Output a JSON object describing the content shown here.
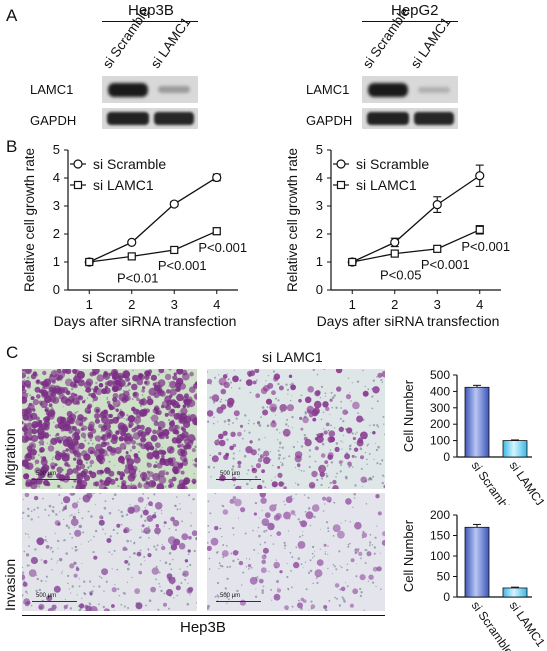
{
  "panels": {
    "a": "A",
    "b": "B",
    "c": "C"
  },
  "western_blot": [
    {
      "cell_line": "Hep3B",
      "lanes": [
        "si Scramble",
        "si LAMC1"
      ],
      "rows": [
        "LAMC1",
        "GAPDH"
      ]
    },
    {
      "cell_line": "HepG2",
      "lanes": [
        "si Scramble",
        "si LAMC1"
      ],
      "rows": [
        "LAMC1",
        "GAPDH"
      ]
    }
  ],
  "chart_data": [
    {
      "type": "line",
      "x": [
        1,
        2,
        3,
        4
      ],
      "xlabel": "Days after siRNA transfection",
      "ylabel": "Relative cell growth rate",
      "xlim": [
        0.5,
        4.5
      ],
      "ylim": [
        0,
        5
      ],
      "yticks": [
        0,
        1,
        2,
        3,
        4,
        5
      ],
      "series": [
        {
          "name": "si Scramble",
          "marker": "circle",
          "values": [
            1.0,
            1.7,
            3.07,
            4.02
          ],
          "errors": [
            0.03,
            0.05,
            0.08,
            0.12
          ]
        },
        {
          "name": "si LAMC1",
          "marker": "square",
          "values": [
            1.0,
            1.2,
            1.43,
            2.1
          ],
          "errors": [
            0.03,
            0.04,
            0.05,
            0.12
          ]
        }
      ],
      "annotations": [
        {
          "text": "P<0.01",
          "x": 2
        },
        {
          "text": "P<0.001",
          "x": 3
        },
        {
          "text": "P<0.001",
          "x": 4
        }
      ],
      "legend": "top-left"
    },
    {
      "type": "line",
      "x": [
        1,
        2,
        3,
        4
      ],
      "xlabel": "Days after siRNA transfection",
      "ylabel": "Relative cell growth rate",
      "xlim": [
        0.5,
        4.5
      ],
      "ylim": [
        0,
        5
      ],
      "yticks": [
        0,
        1,
        2,
        3,
        4,
        5
      ],
      "series": [
        {
          "name": "si Scramble",
          "marker": "circle",
          "values": [
            1.0,
            1.7,
            3.05,
            4.08
          ],
          "errors": [
            0.04,
            0.15,
            0.28,
            0.38
          ]
        },
        {
          "name": "si LAMC1",
          "marker": "square",
          "values": [
            1.0,
            1.3,
            1.47,
            2.15
          ],
          "errors": [
            0.03,
            0.06,
            0.05,
            0.15
          ]
        }
      ],
      "annotations": [
        {
          "text": "P<0.05",
          "x": 2
        },
        {
          "text": "P<0.001",
          "x": 3
        },
        {
          "text": "P<0.001",
          "x": 4
        }
      ],
      "legend": "top-left"
    },
    {
      "type": "bar",
      "categories": [
        "si Scramble",
        "si LAMC1"
      ],
      "values": [
        425,
        100
      ],
      "errors": [
        12,
        4
      ],
      "ylabel": "Cell Number",
      "ylim": [
        0,
        500
      ],
      "yticks": [
        0,
        100,
        200,
        300,
        400,
        500
      ]
    },
    {
      "type": "bar",
      "categories": [
        "si Scramble",
        "si LAMC1"
      ],
      "values": [
        170,
        22
      ],
      "errors": [
        7,
        2
      ],
      "ylabel": "Cell Number",
      "ylim": [
        0,
        200
      ],
      "yticks": [
        0,
        50,
        100,
        150,
        200
      ]
    }
  ],
  "micrographs": {
    "columns": [
      "si Scramble",
      "si LAMC1"
    ],
    "rows": [
      "Migration",
      "Invasion"
    ],
    "scale_bar": "500 μm",
    "cell_line": "Hep3B"
  },
  "colors": {
    "bar_blue": "#6f86d6",
    "bar_cyan": "#7fd8f4",
    "stain": "#7b2e86"
  }
}
